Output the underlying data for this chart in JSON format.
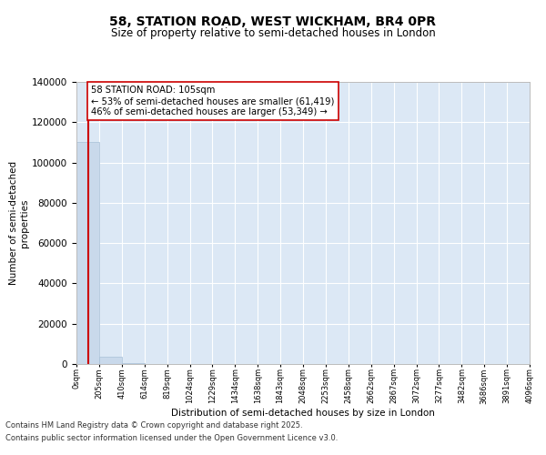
{
  "title": "58, STATION ROAD, WEST WICKHAM, BR4 0PR",
  "subtitle": "Size of property relative to semi-detached houses in London",
  "xlabel": "Distribution of semi-detached houses by size in London",
  "ylabel": "Number of semi-detached\nproperties",
  "bin_edges": [
    0,
    205,
    410,
    614,
    819,
    1024,
    1229,
    1434,
    1638,
    1843,
    2048,
    2253,
    2458,
    2662,
    2867,
    3072,
    3277,
    3482,
    3686,
    3891,
    4096
  ],
  "bar_values": [
    110000,
    3500,
    400,
    150,
    80,
    50,
    30,
    20,
    15,
    10,
    8,
    6,
    5,
    4,
    3,
    3,
    2,
    2,
    2,
    1
  ],
  "bar_color": "#c9d9eb",
  "bar_edge_color": "#a8c0d8",
  "property_size": 105,
  "property_label": "58 STATION ROAD: 105sqm",
  "pct_smaller": 53,
  "pct_larger": 46,
  "count_smaller": 61419,
  "count_larger": 53349,
  "annotation_line_color": "#cc0000",
  "annotation_box_color": "#ffffff",
  "annotation_box_edge": "#cc0000",
  "ylim": [
    0,
    140000
  ],
  "yticks": [
    0,
    20000,
    40000,
    60000,
    80000,
    100000,
    120000,
    140000
  ],
  "background_color": "#dce8f5",
  "fig_background": "#ffffff",
  "footer_line1": "Contains HM Land Registry data © Crown copyright and database right 2025.",
  "footer_line2": "Contains public sector information licensed under the Open Government Licence v3.0."
}
